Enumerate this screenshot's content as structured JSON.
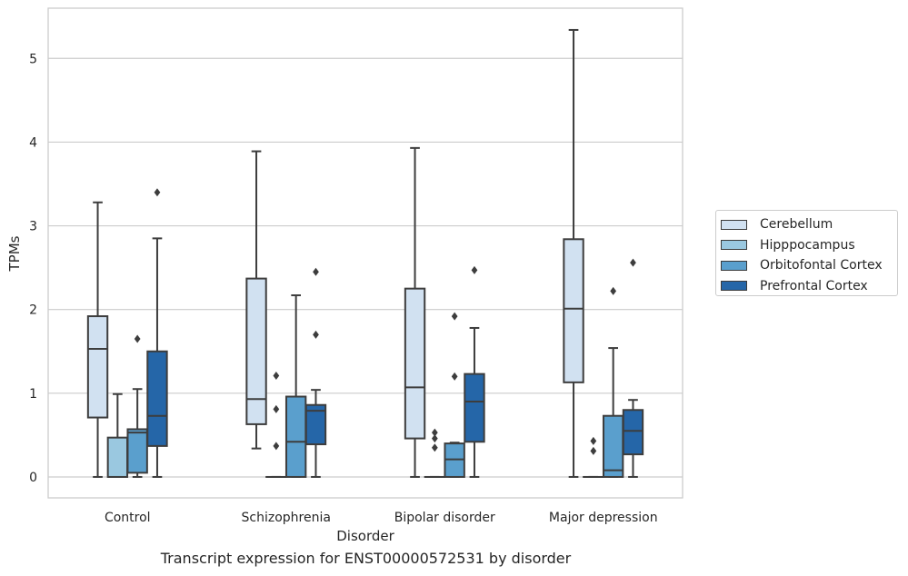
{
  "caption": "Transcript expression for ENST00000572531 by disorder",
  "chart_data": {
    "type": "box",
    "xlabel": "Disorder",
    "ylabel": "TPMs",
    "ylim": [
      -0.25,
      5.6
    ],
    "yticks": [
      0,
      1,
      2,
      3,
      4,
      5
    ],
    "grid": "horizontal",
    "legend_placement": "right-center",
    "categories": [
      "Control",
      "Schizophrenia",
      "Bipolar disorder",
      "Major depression"
    ],
    "series": [
      {
        "name": "Cerebellum",
        "color": "#d1e1f1",
        "boxes": [
          {
            "whisker_low": 0.0,
            "q1": 0.71,
            "median": 1.53,
            "q3": 1.92,
            "whisker_high": 3.28,
            "outliers": []
          },
          {
            "whisker_low": 0.34,
            "q1": 0.63,
            "median": 0.93,
            "q3": 2.37,
            "whisker_high": 3.89,
            "outliers": []
          },
          {
            "whisker_low": 0.0,
            "q1": 0.46,
            "median": 1.07,
            "q3": 2.25,
            "whisker_high": 3.93,
            "outliers": []
          },
          {
            "whisker_low": 0.0,
            "q1": 1.13,
            "median": 2.01,
            "q3": 2.84,
            "whisker_high": 5.34,
            "outliers": []
          }
        ]
      },
      {
        "name": "Hipppocampus",
        "color": "#9ac8e0",
        "boxes": [
          {
            "whisker_low": 0.0,
            "q1": 0.0,
            "median": 0.0,
            "q3": 0.47,
            "whisker_high": 0.99,
            "outliers": []
          },
          {
            "whisker_low": 0.0,
            "q1": 0.0,
            "median": 0.0,
            "q3": 0.0,
            "whisker_high": 0.0,
            "outliers": [
              0.37,
              0.81,
              1.21
            ]
          },
          {
            "whisker_low": 0.0,
            "q1": 0.0,
            "median": 0.0,
            "q3": 0.0,
            "whisker_high": 0.0,
            "outliers": [
              0.35,
              0.46,
              0.53
            ]
          },
          {
            "whisker_low": 0.0,
            "q1": 0.0,
            "median": 0.0,
            "q3": 0.0,
            "whisker_high": 0.0,
            "outliers": [
              0.31,
              0.43
            ]
          }
        ]
      },
      {
        "name": "Orbitofontal Cortex",
        "color": "#5a9fcd",
        "boxes": [
          {
            "whisker_low": 0.0,
            "q1": 0.05,
            "median": 0.53,
            "q3": 0.57,
            "whisker_high": 1.05,
            "outliers": [
              1.65
            ]
          },
          {
            "whisker_low": 0.0,
            "q1": 0.0,
            "median": 0.42,
            "q3": 0.96,
            "whisker_high": 2.17,
            "outliers": []
          },
          {
            "whisker_low": 0.0,
            "q1": 0.0,
            "median": 0.21,
            "q3": 0.4,
            "whisker_high": 0.41,
            "outliers": [
              1.2,
              1.92
            ]
          },
          {
            "whisker_low": 0.0,
            "q1": 0.0,
            "median": 0.08,
            "q3": 0.73,
            "whisker_high": 1.54,
            "outliers": [
              2.22
            ]
          }
        ]
      },
      {
        "name": "Prefrontal Cortex",
        "color": "#2566a8",
        "boxes": [
          {
            "whisker_low": 0.0,
            "q1": 0.37,
            "median": 0.73,
            "q3": 1.5,
            "whisker_high": 2.85,
            "outliers": [
              3.4
            ]
          },
          {
            "whisker_low": 0.0,
            "q1": 0.39,
            "median": 0.79,
            "q3": 0.86,
            "whisker_high": 1.04,
            "outliers": [
              1.7,
              2.45
            ]
          },
          {
            "whisker_low": 0.0,
            "q1": 0.42,
            "median": 0.9,
            "q3": 1.23,
            "whisker_high": 1.78,
            "outliers": [
              2.47
            ]
          },
          {
            "whisker_low": 0.0,
            "q1": 0.27,
            "median": 0.55,
            "q3": 0.8,
            "whisker_high": 0.92,
            "outliers": [
              2.56
            ]
          }
        ]
      }
    ]
  }
}
